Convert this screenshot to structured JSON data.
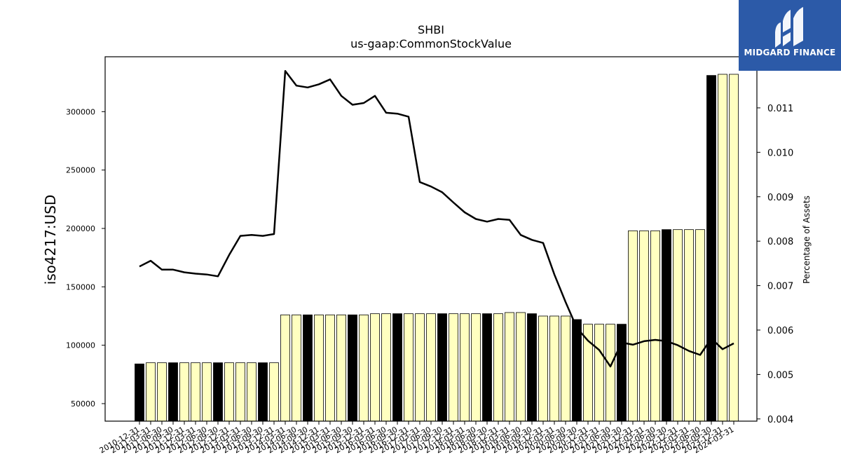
{
  "chart_data": {
    "type": "bar",
    "title": "SHBI",
    "subtitle": "us-gaap:CommonStockValue",
    "ylabel": "iso4217:USD",
    "y2label": "Percentage of Assets",
    "ylim": [
      35000,
      347000
    ],
    "y2lim": [
      0.00395,
      0.01215
    ],
    "yticks": [
      50000,
      100000,
      150000,
      200000,
      250000,
      300000
    ],
    "y2ticks": [
      0.004,
      0.005,
      0.006,
      0.007,
      0.008,
      0.009,
      0.01,
      0.011
    ],
    "ytick_labels": [
      "50000",
      "100000",
      "150000",
      "200000",
      "250000",
      "300000"
    ],
    "y2tick_labels": [
      "0.004",
      "0.005",
      "0.006",
      "0.007",
      "0.008",
      "0.009",
      "0.010",
      "0.011"
    ],
    "categories": [
      "2010-12-31",
      "2011-03-31",
      "2011-06-30",
      "2011-09-30",
      "2011-12-31",
      "2012-03-31",
      "2012-06-30",
      "2012-09-30",
      "2012-12-31",
      "2013-03-31",
      "2013-06-30",
      "2013-09-30",
      "2013-12-31",
      "2014-03-31",
      "2014-06-30",
      "2014-09-30",
      "2014-12-31",
      "2015-03-31",
      "2015-06-30",
      "2015-09-30",
      "2015-12-31",
      "2016-03-31",
      "2016-06-30",
      "2016-09-30",
      "2016-12-31",
      "2017-03-31",
      "2017-06-30",
      "2017-09-30",
      "2017-12-31",
      "2018-03-31",
      "2018-06-30",
      "2018-09-30",
      "2018-12-31",
      "2019-03-31",
      "2019-06-30",
      "2019-09-30",
      "2019-12-31",
      "2020-03-31",
      "2020-06-30",
      "2020-09-30",
      "2020-12-31",
      "2021-03-31",
      "2021-06-30",
      "2021-09-30",
      "2021-12-31",
      "2022-03-31",
      "2022-06-30",
      "2022-09-30",
      "2022-12-31",
      "2023-03-31",
      "2023-06-30",
      "2023-09-30",
      "2023-12-31",
      "2024-03-31"
    ],
    "series": [
      {
        "type": "bar",
        "axis": "left",
        "values": [
          84000,
          85000,
          85000,
          85000,
          85000,
          85000,
          85000,
          85000,
          85000,
          85000,
          85000,
          85000,
          85000,
          126000,
          126000,
          126000,
          126000,
          126000,
          126000,
          126000,
          126000,
          127000,
          127000,
          127000,
          127000,
          127000,
          127000,
          127000,
          127000,
          127000,
          127000,
          127000,
          127000,
          128000,
          128000,
          127000,
          125000,
          125000,
          125000,
          122000,
          118000,
          118000,
          118000,
          118000,
          198000,
          198000,
          198000,
          199000,
          199000,
          199000,
          199000,
          331000,
          332000,
          332000
        ],
        "highlight": [
          true,
          false,
          false,
          true,
          false,
          false,
          false,
          true,
          false,
          false,
          false,
          true,
          false,
          false,
          false,
          true,
          false,
          false,
          false,
          true,
          false,
          false,
          false,
          true,
          false,
          false,
          false,
          true,
          false,
          false,
          false,
          true,
          false,
          false,
          false,
          true,
          false,
          false,
          false,
          true,
          false,
          false,
          false,
          true,
          false,
          false,
          false,
          true,
          false,
          false,
          false,
          true,
          false,
          false
        ],
        "highlight_color": "#000000",
        "color": "#ffffc0"
      },
      {
        "type": "line",
        "axis": "right",
        "color": "#000000",
        "values": [
          0.00743,
          0.00756,
          0.00736,
          0.00736,
          0.0073,
          0.00727,
          0.00725,
          0.00721,
          0.00769,
          0.00812,
          0.00814,
          0.00812,
          0.00816,
          0.01183,
          0.0115,
          0.01146,
          0.01153,
          0.01164,
          0.01127,
          0.01107,
          0.01111,
          0.01127,
          0.01089,
          0.01087,
          0.0108,
          0.00933,
          0.00923,
          0.0091,
          0.00887,
          0.00865,
          0.0085,
          0.00844,
          0.0085,
          0.00848,
          0.00814,
          0.00803,
          0.00796,
          0.00725,
          0.00663,
          0.00605,
          0.00576,
          0.00555,
          0.00518,
          0.00572,
          0.00567,
          0.00575,
          0.00578,
          0.00575,
          0.00566,
          0.00553,
          0.00544,
          0.00581,
          0.00557,
          0.0057
        ]
      }
    ],
    "grid": false,
    "legend": "none"
  },
  "logo": {
    "text": "MIDGARD FINANCE",
    "icon": "midgard-logo-icon",
    "color": "#2c5aa8"
  }
}
